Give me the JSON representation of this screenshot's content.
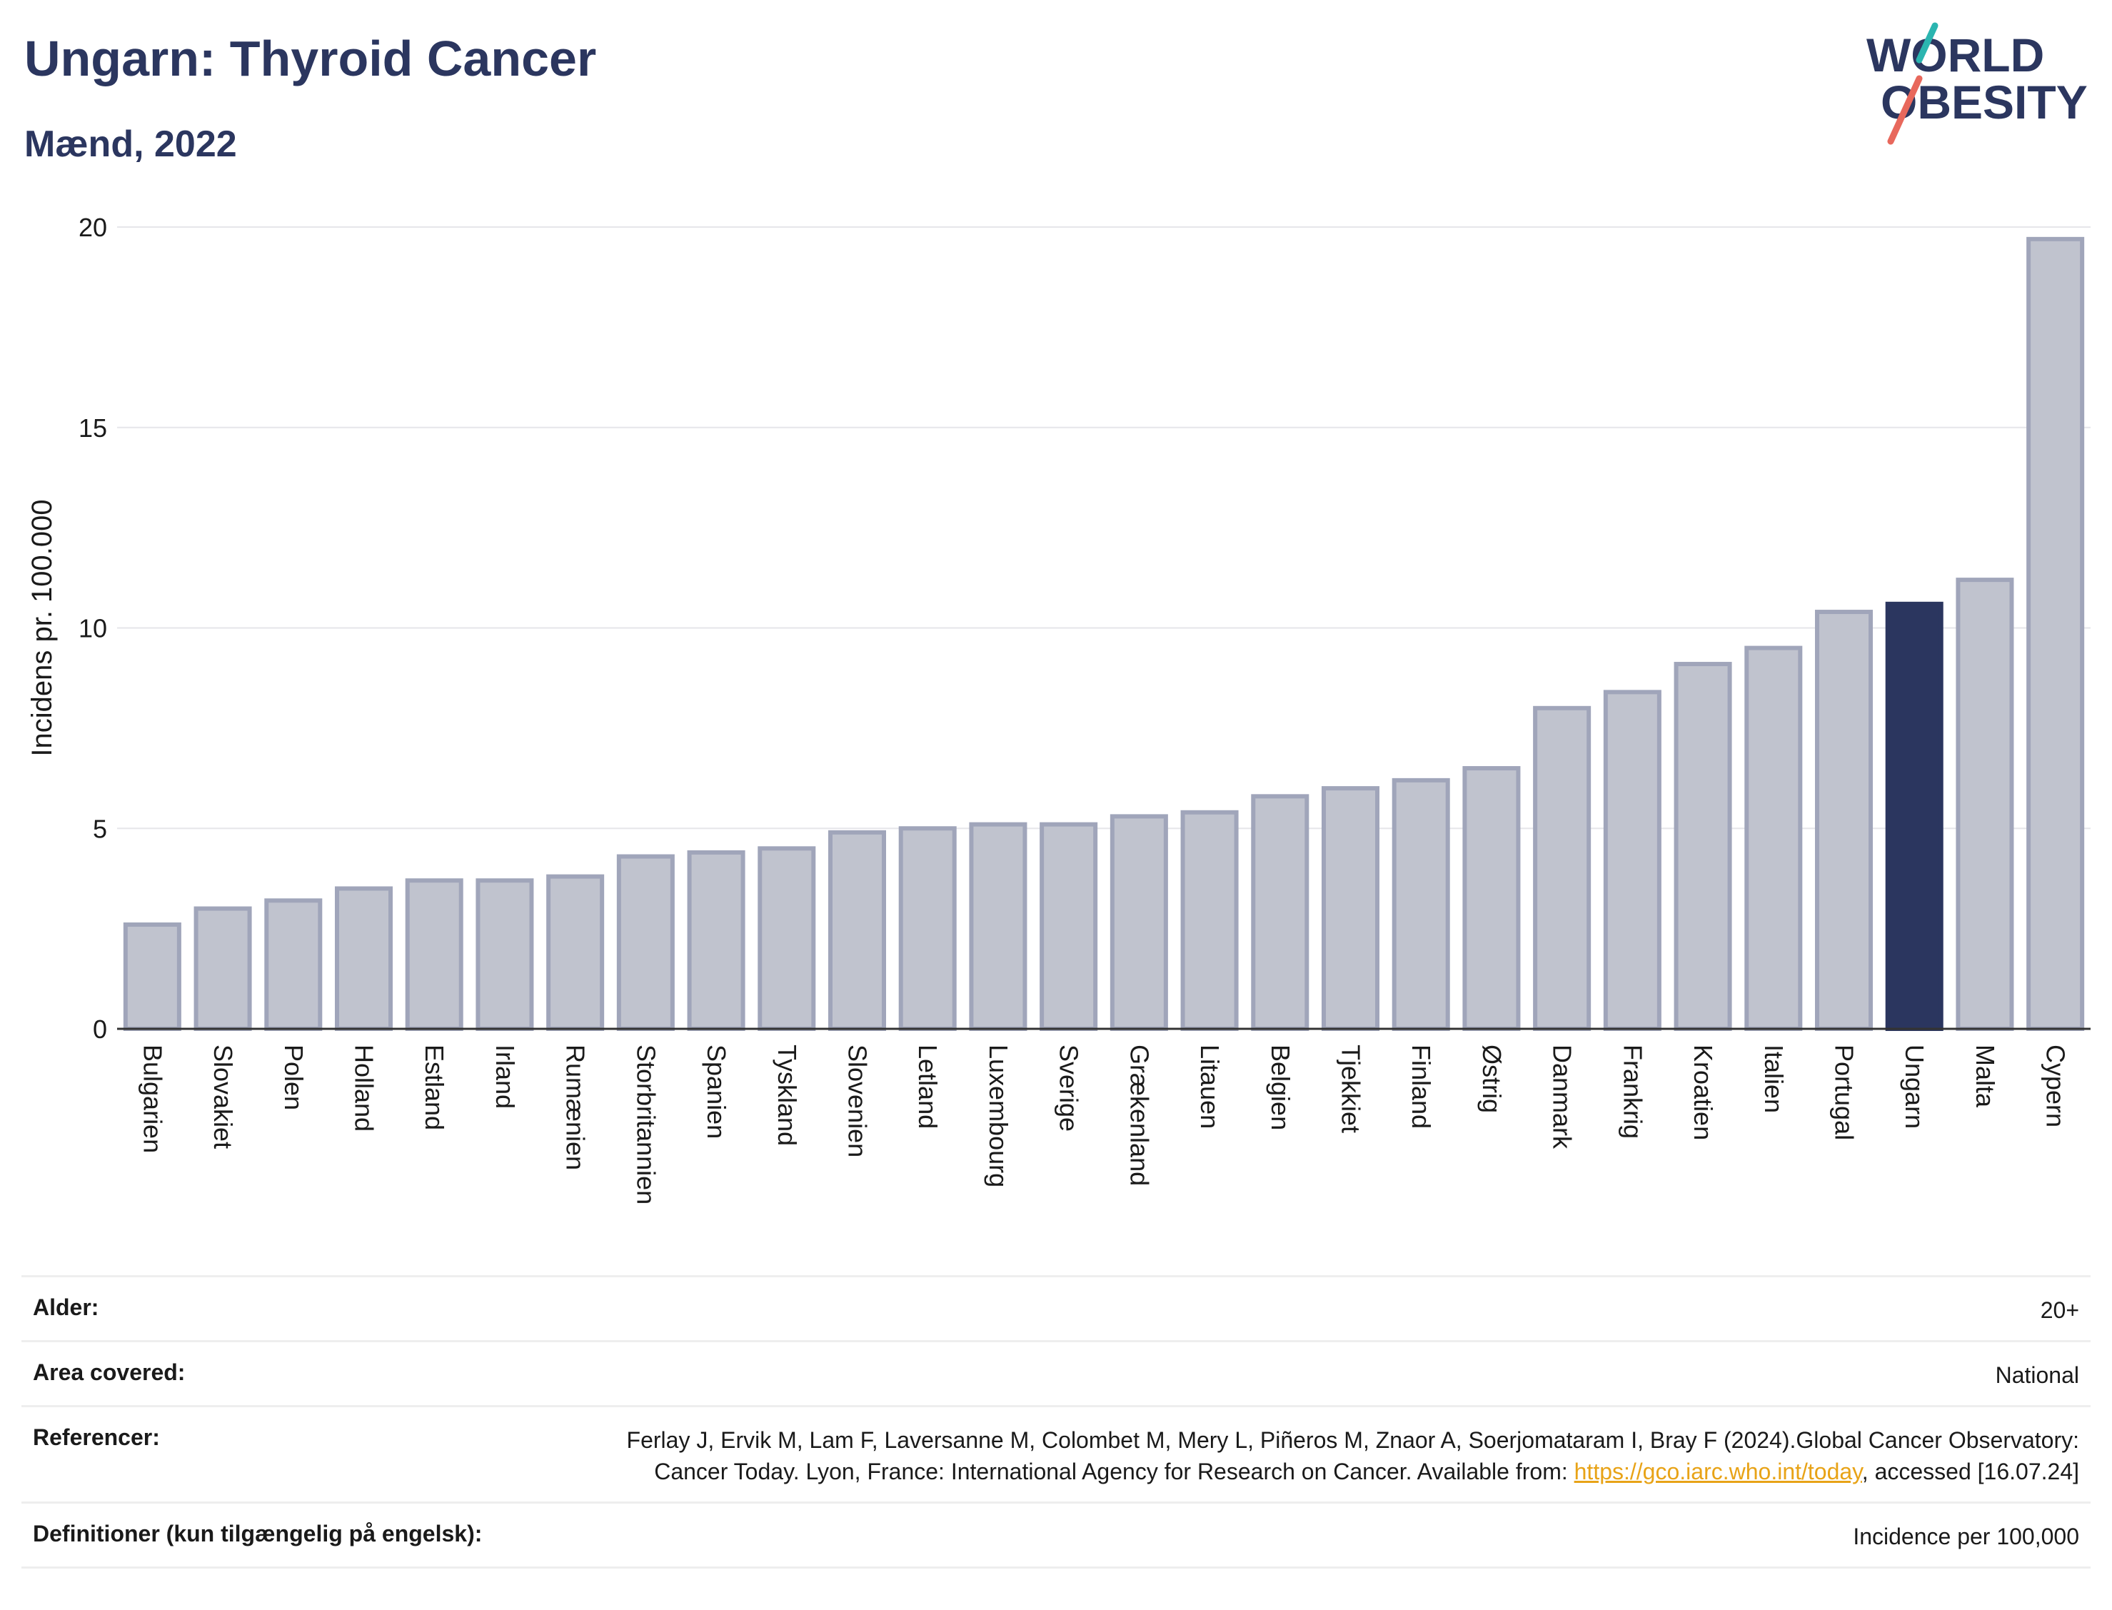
{
  "header": {
    "title": "Ungarn: Thyroid Cancer",
    "subtitle": "Mænd, 2022"
  },
  "logo": {
    "line1": "WORLD",
    "line2": "OBESITY",
    "accent_teal": "#2bb5b0",
    "accent_red": "#e8685c"
  },
  "colors": {
    "bar_fill": "#c0c3ce",
    "bar_stroke": "#a0a5ba",
    "highlight": "#2b365f",
    "grid": "#e6e6ea",
    "axis": "#333333"
  },
  "chart_data": {
    "type": "bar",
    "ylabel": "Incidens pr. 100.000",
    "ylim": [
      0,
      20
    ],
    "yticks": [
      0,
      5,
      10,
      15,
      20
    ],
    "grid": true,
    "highlight_category": "Ungarn",
    "categories": [
      "Bulgarien",
      "Slovakiet",
      "Polen",
      "Holland",
      "Estland",
      "Irland",
      "Rumænien",
      "Storbritannien",
      "Spanien",
      "Tyskland",
      "Slovenien",
      "Letland",
      "Luxembourg",
      "Sverige",
      "Grækenland",
      "Litauen",
      "Belgien",
      "Tjekkiet",
      "Finland",
      "Østrig",
      "Danmark",
      "Frankrig",
      "Kroatien",
      "Italien",
      "Portugal",
      "Ungarn",
      "Malta",
      "Cypern"
    ],
    "values": [
      2.6,
      3.0,
      3.2,
      3.5,
      3.7,
      3.7,
      3.8,
      4.3,
      4.4,
      4.5,
      4.9,
      5.0,
      5.1,
      5.1,
      5.3,
      5.4,
      5.8,
      6.0,
      6.2,
      6.5,
      8.0,
      8.4,
      9.1,
      9.5,
      10.4,
      10.6,
      11.2,
      19.7
    ]
  },
  "info": {
    "age_label": "Alder:",
    "age_value": "20+",
    "area_label": "Area covered:",
    "area_value": "National",
    "ref_label": "Referencer:",
    "ref_text_1": "Ferlay J, Ervik M, Lam F, Laversanne M, Colombet M, Mery L, Piñeros M, Znaor A, Soerjomataram I, Bray F (2024).Global Cancer Observatory: Cancer Today. Lyon, France: International Agency for Research on Cancer. Available from: ",
    "ref_link": "https://gco.iarc.who.int/today",
    "ref_text_2": ", accessed [16.07.24]",
    "def_label": "Definitioner (kun tilgængelig på engelsk):",
    "def_value": "Incidence per 100,000"
  }
}
